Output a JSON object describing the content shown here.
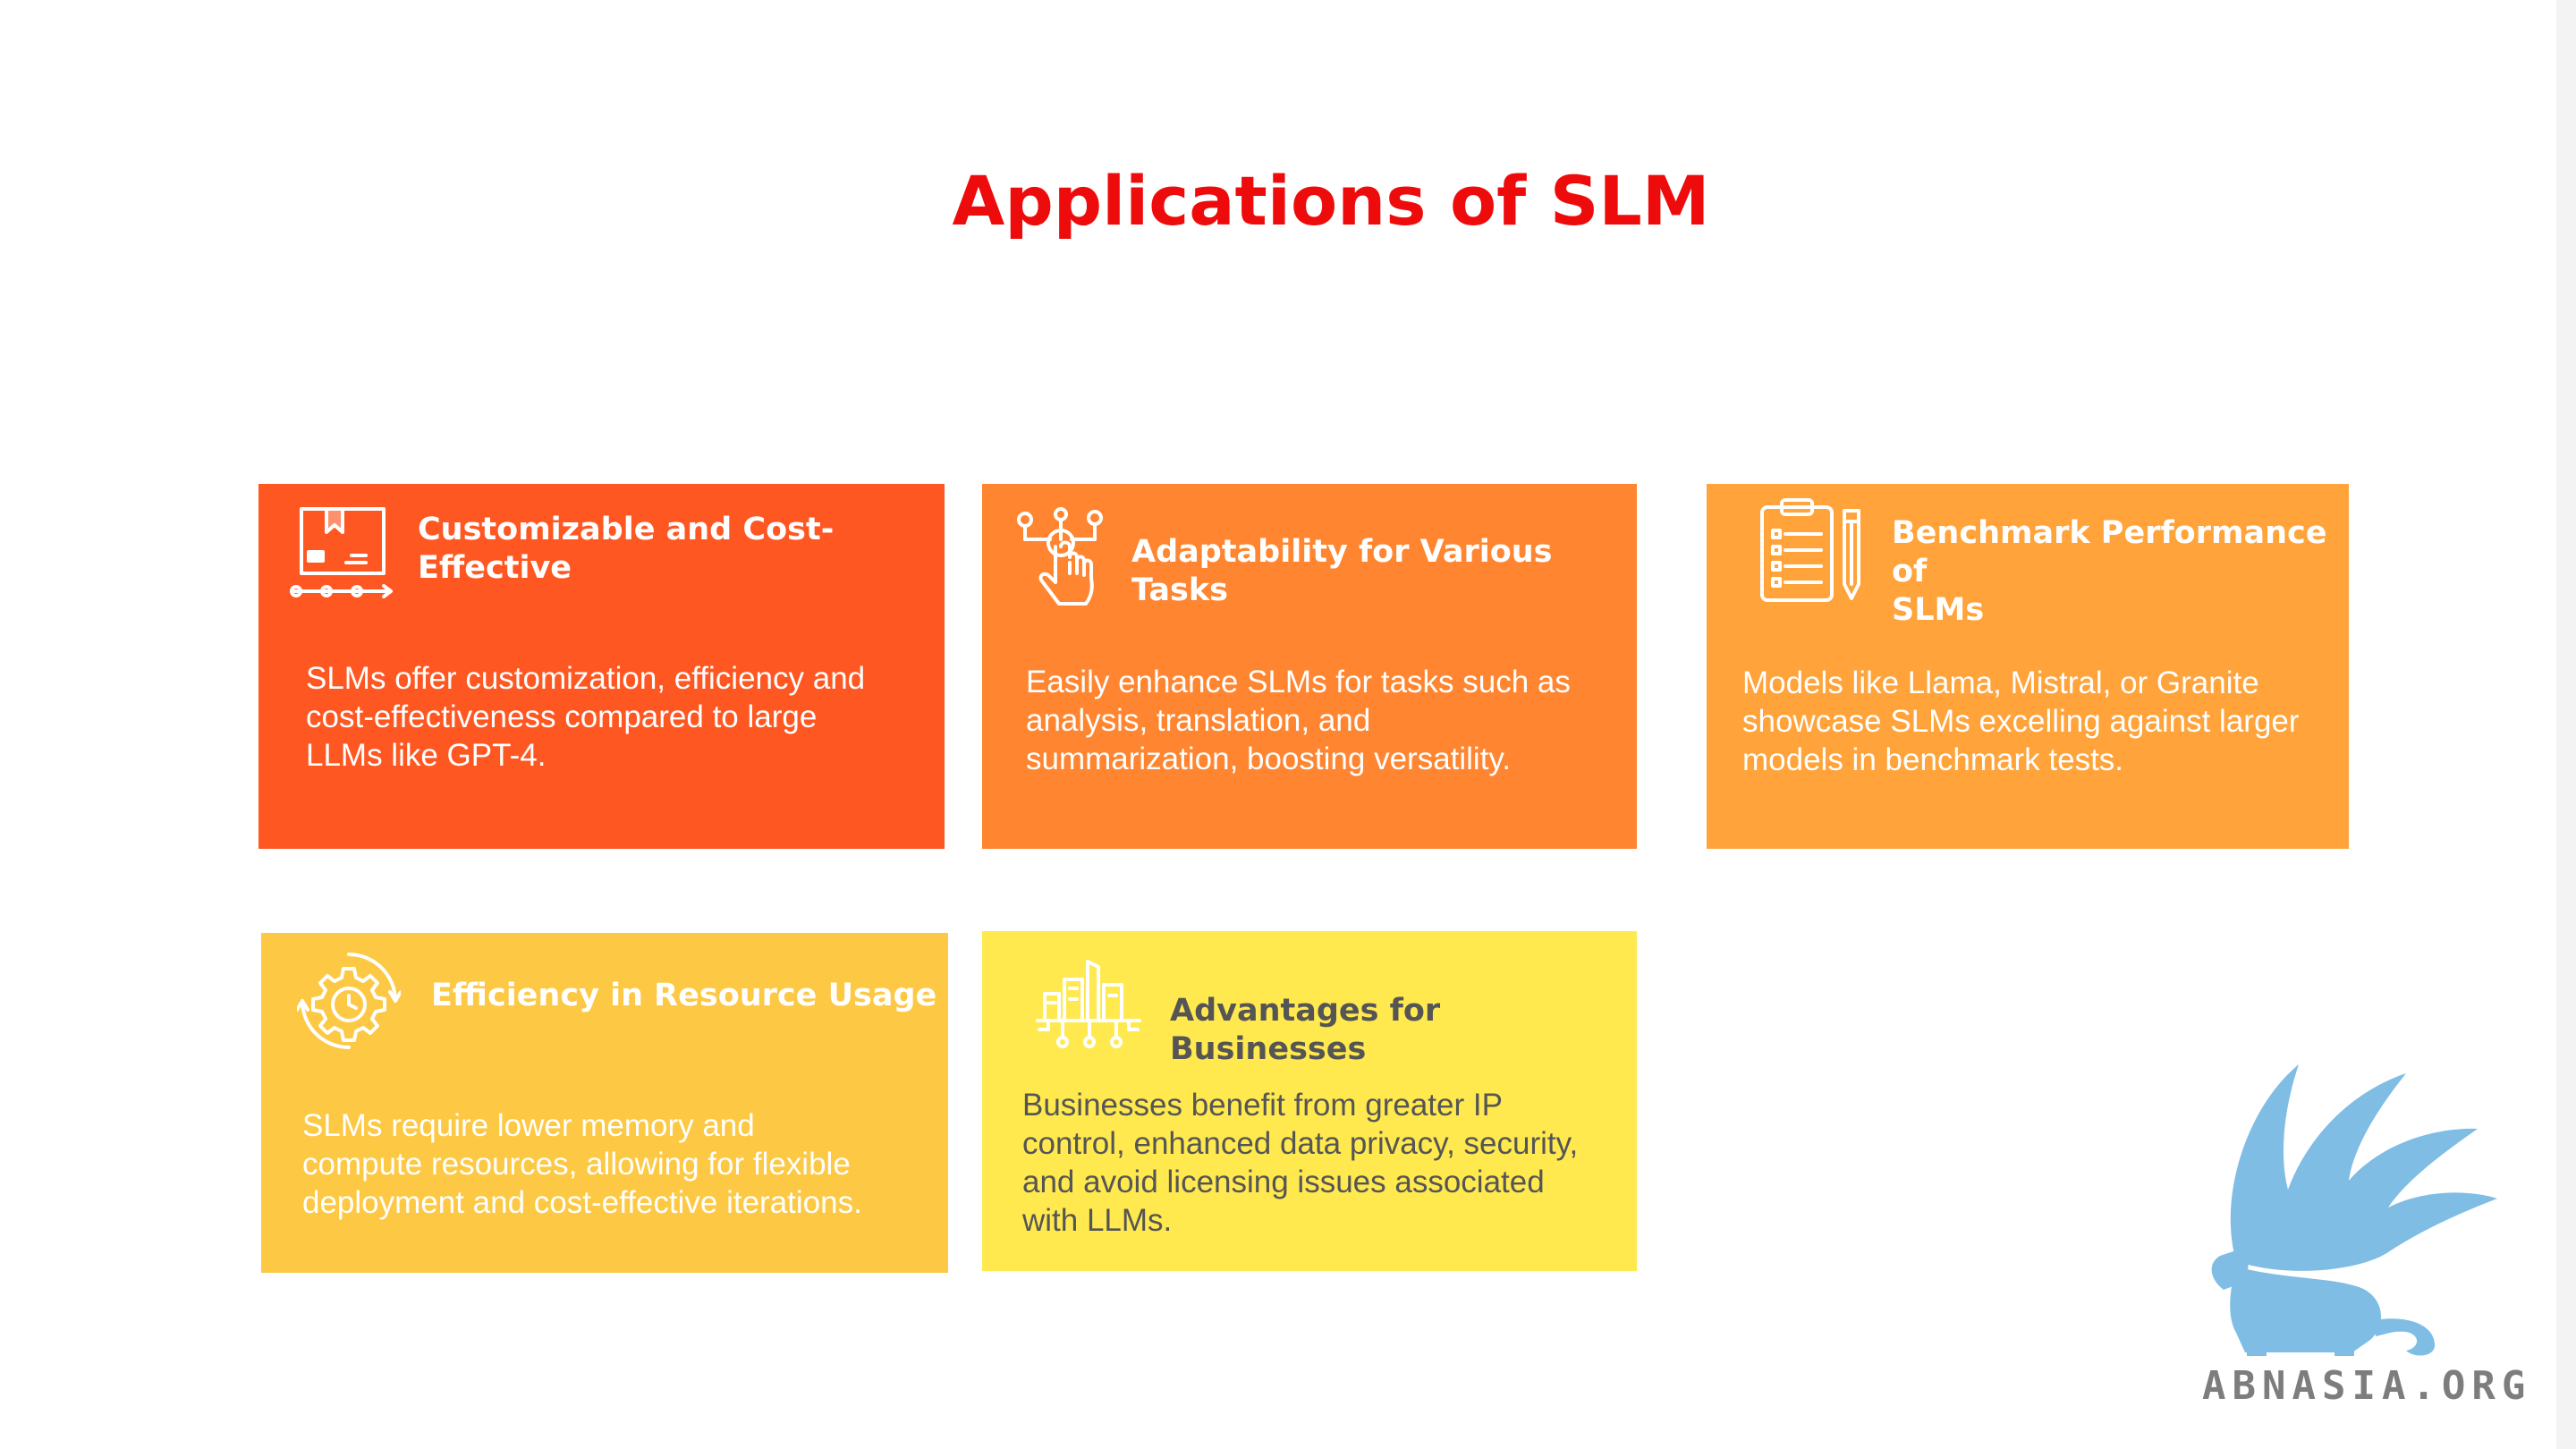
{
  "title": "Applications of SLM",
  "colors": {
    "title": "#ee0b0b",
    "card_1": "#ff5722",
    "card_2": "#ff8530",
    "card_3": "#ffa33a",
    "card_4": "#fdc843",
    "card_5": "#ffe94f",
    "logo_bird": "#7fbde4"
  },
  "cards": [
    {
      "icon": "package-tracking-icon",
      "heading": "Customizable and Cost-Effective",
      "heading_lines": [
        "Customizable and Cost-",
        "Effective"
      ],
      "body_lines": [
        "SLMs offer customization, efficiency and",
        "cost-effectiveness compared to large",
        "LLMs like GPT-4."
      ]
    },
    {
      "icon": "touch-network-icon",
      "heading": "Adaptability for Various Tasks",
      "heading_lines": [
        "Adaptability for Various Tasks"
      ],
      "body_lines": [
        "Easily enhance SLMs for tasks such as",
        "analysis, translation, and",
        "summarization, boosting versatility."
      ]
    },
    {
      "icon": "clipboard-pen-icon",
      "heading": "Benchmark Performance of SLMs",
      "heading_lines": [
        "Benchmark Performance of",
        "SLMs"
      ],
      "body_lines": [
        "Models like Llama, Mistral, or Granite",
        "showcase SLMs excelling against larger",
        "models in benchmark tests."
      ]
    },
    {
      "icon": "gear-clock-icon",
      "heading": "Efficiency in Resource Usage",
      "heading_lines": [
        "Efficiency in Resource Usage"
      ],
      "body_lines": [
        "SLMs require lower memory and",
        "compute resources, allowing for flexible",
        "deployment and cost-effective iterations."
      ]
    },
    {
      "icon": "smart-city-icon",
      "heading": "Advantages for Businesses",
      "heading_lines": [
        "Advantages for Businesses"
      ],
      "body_lines": [
        "Businesses benefit from greater IP",
        "control, enhanced data privacy, security,",
        "and avoid licensing issues associated",
        "with LLMs."
      ]
    }
  ],
  "watermark": {
    "icon": "griffin-logo-icon",
    "text": "ABNASIA.ORG"
  }
}
